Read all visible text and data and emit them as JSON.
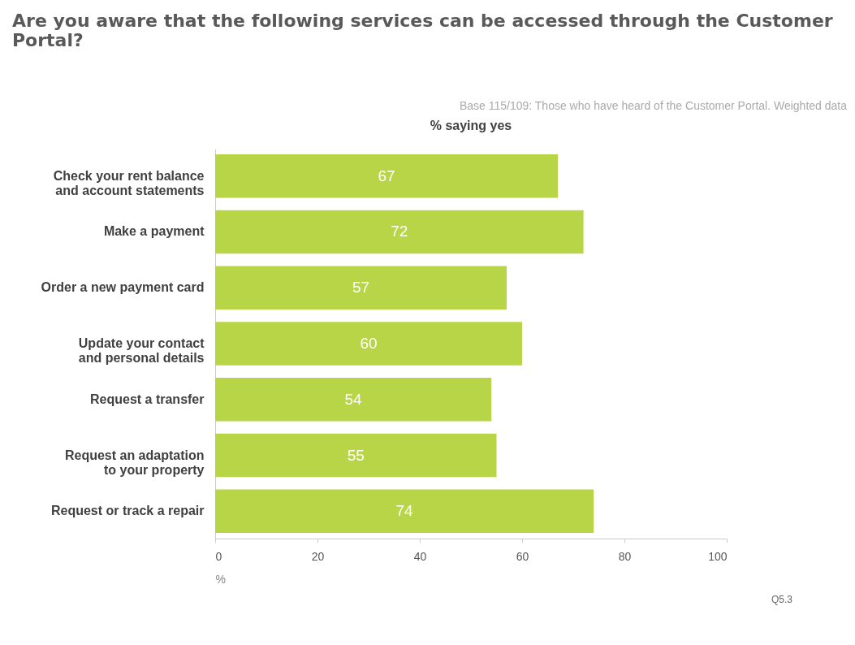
{
  "chart_data": {
    "type": "bar",
    "orientation": "horizontal",
    "title": "Are you aware that the following services can be accessed through the Customer Portal?",
    "subtitle": "Base 115/109: Those who have heard of the Customer Portal. Weighted data",
    "categories": [
      "Check your rent balance and account statements",
      "Make a payment",
      "Order a new payment card",
      "Update your contact and personal details",
      "Request a transfer",
      "Request an adaptation to your property",
      "Request or track a repair"
    ],
    "values": [
      67,
      72,
      57,
      60,
      54,
      55,
      74
    ],
    "color": "#b8d548",
    "xlabel": "%",
    "xlim": [
      0,
      100
    ],
    "xticks": [
      0,
      20,
      40,
      60,
      80,
      100
    ],
    "grid": false,
    "data_labels": true,
    "annotations": [
      "% saying yes",
      "Q5.3"
    ]
  }
}
